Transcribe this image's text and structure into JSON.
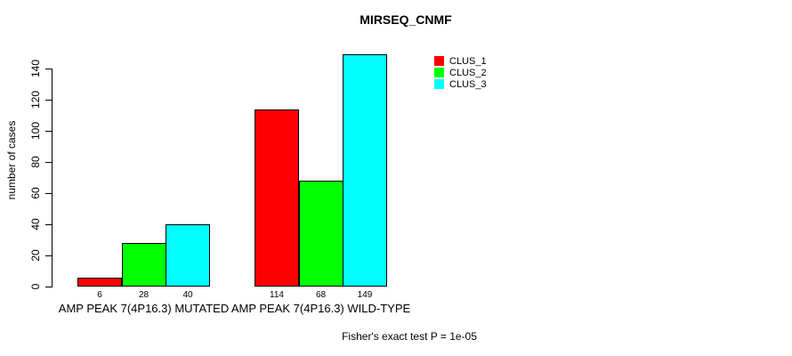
{
  "chart_data": {
    "type": "bar",
    "title": "MIRSEQ_CNMF",
    "xlabel": "",
    "ylabel": "number of cases",
    "categories": [
      "AMP PEAK 7(4P16.3) MUTATED",
      "AMP PEAK 7(4P16.3) WILD-TYPE"
    ],
    "series": [
      {
        "name": "CLUS_1",
        "color": "#ff0000",
        "values": [
          6,
          114
        ]
      },
      {
        "name": "CLUS_2",
        "color": "#00ff00",
        "values": [
          28,
          68
        ]
      },
      {
        "name": "CLUS_3",
        "color": "#00ffff",
        "values": [
          40,
          149
        ]
      }
    ],
    "yticks": [
      0,
      20,
      40,
      60,
      80,
      100,
      120,
      140
    ],
    "ylim": [
      0,
      140
    ],
    "grid": false,
    "legend_position": "top-right",
    "bar_value_labels_shown": true,
    "annotation": "Fisher's exact test P = 1e-05"
  }
}
